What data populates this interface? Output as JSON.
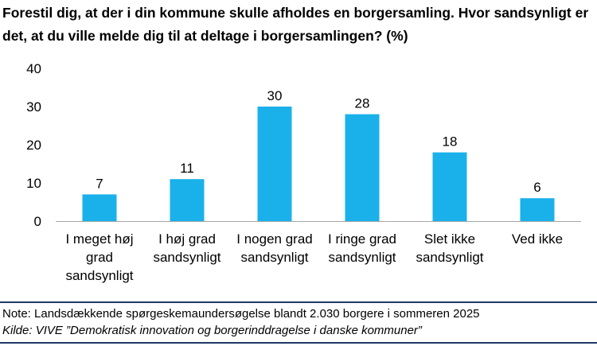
{
  "chart_data": {
    "type": "bar",
    "title": "Forestil dig, at der i din kommune skulle afholdes en borgersamling. Hvor sandsynligt er det, at du ville melde dig til at deltage i borgersamlingen? (%)",
    "categories": [
      [
        "I meget høj",
        "grad",
        "sandsynligt"
      ],
      [
        "I høj grad",
        "sandsynligt"
      ],
      [
        "I nogen grad",
        "sandsynligt"
      ],
      [
        "I ringe grad",
        "sandsynligt"
      ],
      [
        "Slet ikke",
        "sandsynligt"
      ],
      [
        "Ved ikke"
      ]
    ],
    "values": [
      7,
      11,
      30,
      28,
      18,
      6
    ],
    "data_labels": [
      "7",
      "11",
      "30",
      "28",
      "18",
      "6"
    ],
    "yticks": [
      "0",
      "10",
      "20",
      "30",
      "40"
    ],
    "ylim": [
      0,
      40
    ],
    "grid": false,
    "bar_color": "#1ab1ea",
    "xlabel": "",
    "ylabel": ""
  },
  "footer": {
    "note": "Note: Landsdækkende spørgeskemaundersøgelse blandt 2.030 borgere i sommeren 2025",
    "source": "Kilde: VIVE ”Demokratisk innovation og borgerinddragelse i danske kommuner”"
  },
  "colors": {
    "rule": "#1f3864",
    "axis": "#a6a6a6"
  }
}
